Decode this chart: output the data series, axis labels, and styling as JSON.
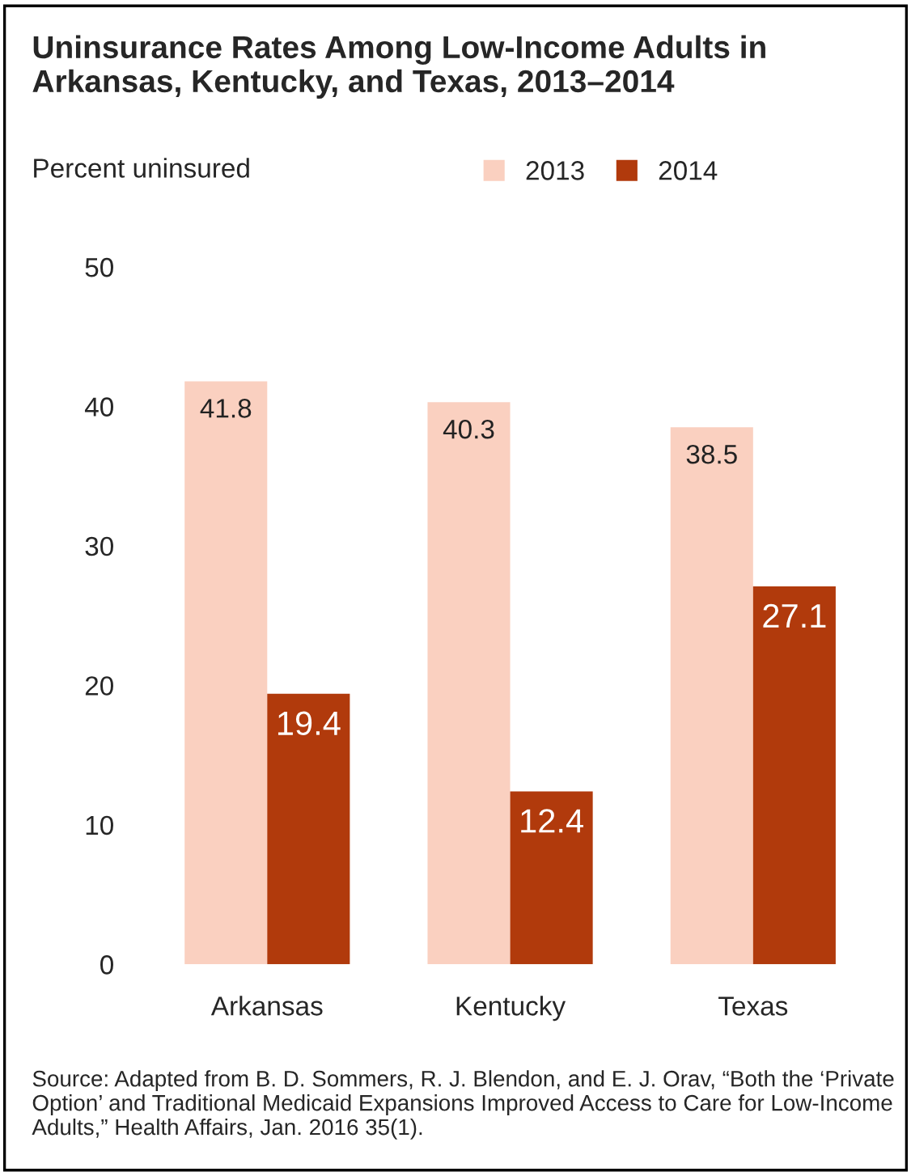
{
  "chart_data": {
    "type": "bar",
    "title": "Uninsurance Rates Among Low-Income Adults in Arkansas, Kentucky, and Texas, 2013–2014",
    "ylabel": "Percent uninsured",
    "categories": [
      "Arkansas",
      "Kentucky",
      "Texas"
    ],
    "series": [
      {
        "name": "2013",
        "color": "#fad0c0",
        "values": [
          41.8,
          40.3,
          38.5
        ]
      },
      {
        "name": "2014",
        "color": "#b13a0c",
        "values": [
          19.4,
          12.4,
          27.1
        ]
      }
    ],
    "ylim": [
      0,
      50
    ],
    "yticks": [
      0,
      10,
      20,
      30,
      40,
      50
    ],
    "grid": false,
    "legend": "top",
    "data_labels": true,
    "annotations": [
      "Source: Adapted from B. D. Sommers, R. J. Blendon, and E. J. Orav, “Both the ‘Private Option’ and Traditional Medicaid Expansions Improved Access to Care for Low-Income Adults,” Health Affairs, Jan. 2016 35(1)."
    ]
  }
}
